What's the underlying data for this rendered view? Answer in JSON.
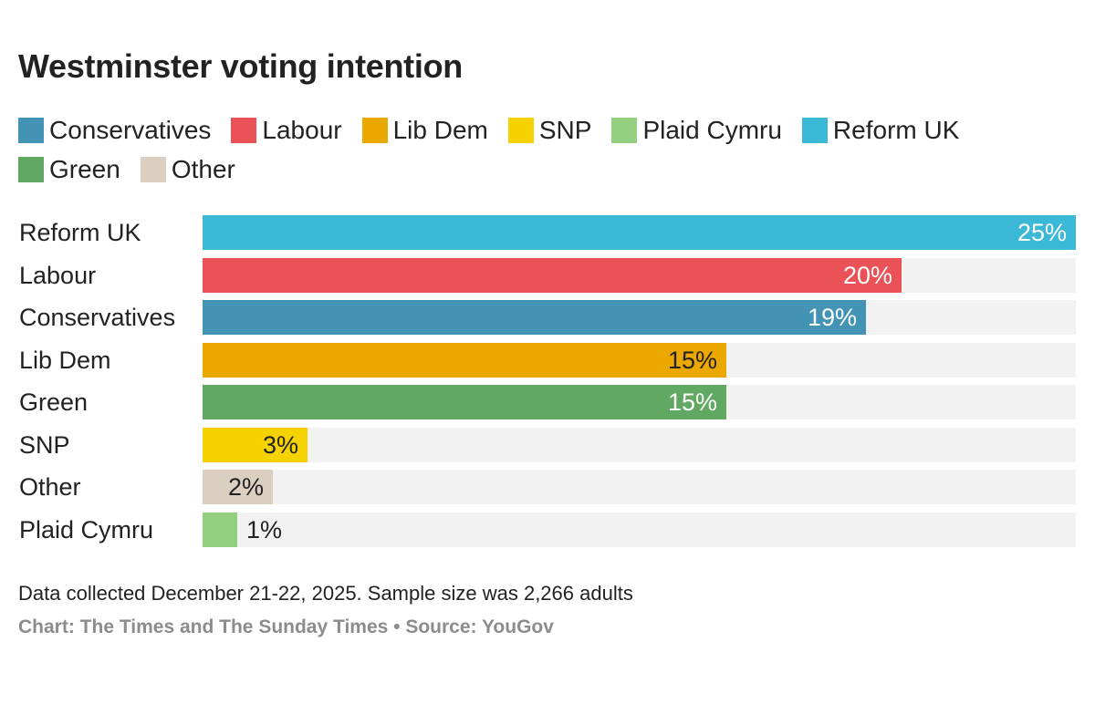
{
  "chart_data": {
    "type": "bar",
    "orientation": "horizontal",
    "title": "Westminster voting intention",
    "categories": [
      "Reform UK",
      "Labour",
      "Conservatives",
      "Lib Dem",
      "Green",
      "SNP",
      "Other",
      "Plaid Cymru"
    ],
    "values": [
      25,
      20,
      19,
      15,
      15,
      3,
      2,
      1
    ],
    "value_labels": [
      "25%",
      "20%",
      "19%",
      "15%",
      "15%",
      "3%",
      "2%",
      "1%"
    ],
    "bar_colors": [
      "#3ab8d6",
      "#eb5257",
      "#4393b5",
      "#eaa800",
      "#61a962",
      "#f5d200",
      "#dbcfc2",
      "#92d07f"
    ],
    "label_colors": [
      "#ffffff",
      "#ffffff",
      "#ffffff",
      "#222222",
      "#ffffff",
      "#222222",
      "#222222",
      "#222222"
    ],
    "xlim": [
      0,
      25
    ],
    "legend": [
      {
        "label": "Conservatives",
        "color": "#4393b5"
      },
      {
        "label": "Labour",
        "color": "#eb5257"
      },
      {
        "label": "Lib Dem",
        "color": "#eaa800"
      },
      {
        "label": "SNP",
        "color": "#f5d200"
      },
      {
        "label": "Plaid Cymru",
        "color": "#92d07f"
      },
      {
        "label": "Reform UK",
        "color": "#3ab8d6"
      },
      {
        "label": "Green",
        "color": "#61a962"
      },
      {
        "label": "Other",
        "color": "#dbcfc2"
      }
    ],
    "legend_position": "top",
    "grid": false,
    "xlabel": "",
    "ylabel": ""
  },
  "footer": {
    "note": "Data collected December 21-22, 2025. Sample size was 2,266 adults",
    "credit": "Chart: The Times and The Sunday Times • Source: YouGov"
  }
}
